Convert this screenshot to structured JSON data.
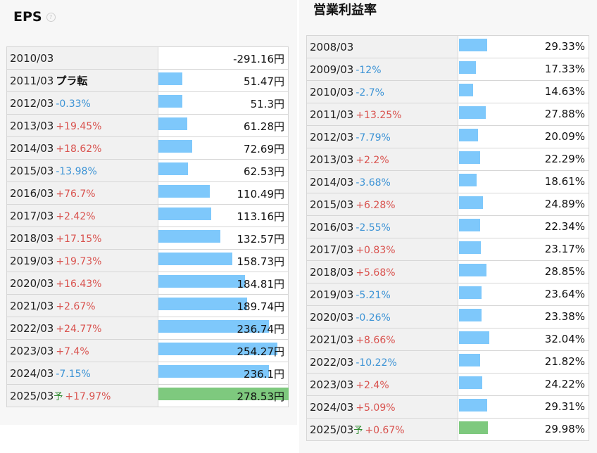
{
  "eps": {
    "title": "EPS",
    "help_icon": "question-circle-icon",
    "max_value": 278.53,
    "bar_width_max": 185,
    "rows": [
      {
        "year": "2010/03",
        "change": "",
        "change_type": "none",
        "value": -291.16,
        "display": "-291.16円",
        "forecast": false
      },
      {
        "year": "2011/03",
        "change": "プラ転",
        "change_type": "flip",
        "value": 51.47,
        "display": "51.47円",
        "forecast": false
      },
      {
        "year": "2012/03",
        "change": "-0.33%",
        "change_type": "neg",
        "value": 51.3,
        "display": "51.3円",
        "forecast": false
      },
      {
        "year": "2013/03",
        "change": "+19.45%",
        "change_type": "pos",
        "value": 61.28,
        "display": "61.28円",
        "forecast": false
      },
      {
        "year": "2014/03",
        "change": "+18.62%",
        "change_type": "pos",
        "value": 72.69,
        "display": "72.69円",
        "forecast": false
      },
      {
        "year": "2015/03",
        "change": "-13.98%",
        "change_type": "neg",
        "value": 62.53,
        "display": "62.53円",
        "forecast": false
      },
      {
        "year": "2016/03",
        "change": "+76.7%",
        "change_type": "pos",
        "value": 110.49,
        "display": "110.49円",
        "forecast": false
      },
      {
        "year": "2017/03",
        "change": "+2.42%",
        "change_type": "pos",
        "value": 113.16,
        "display": "113.16円",
        "forecast": false
      },
      {
        "year": "2018/03",
        "change": "+17.15%",
        "change_type": "pos",
        "value": 132.57,
        "display": "132.57円",
        "forecast": false
      },
      {
        "year": "2019/03",
        "change": "+19.73%",
        "change_type": "pos",
        "value": 158.73,
        "display": "158.73円",
        "forecast": false
      },
      {
        "year": "2020/03",
        "change": "+16.43%",
        "change_type": "pos",
        "value": 184.81,
        "display": "184.81円",
        "forecast": false
      },
      {
        "year": "2021/03",
        "change": "+2.67%",
        "change_type": "pos",
        "value": 189.74,
        "display": "189.74円",
        "forecast": false
      },
      {
        "year": "2022/03",
        "change": "+24.77%",
        "change_type": "pos",
        "value": 236.74,
        "display": "236.74円",
        "forecast": false
      },
      {
        "year": "2023/03",
        "change": "+7.4%",
        "change_type": "pos",
        "value": 254.27,
        "display": "254.27円",
        "forecast": false
      },
      {
        "year": "2024/03",
        "change": "-7.15%",
        "change_type": "neg",
        "value": 236.1,
        "display": "236.1円",
        "forecast": false
      },
      {
        "year": "2025/03",
        "change": "+17.97%",
        "change_type": "pos",
        "value": 278.53,
        "display": "278.53円",
        "forecast": true
      }
    ]
  },
  "operating_margin": {
    "title": "営業利益率",
    "max_value": 137,
    "bar_width_max": 186,
    "rows": [
      {
        "year": "2008/03",
        "change": "",
        "change_type": "none",
        "value": 29.33,
        "display": "29.33%",
        "forecast": false
      },
      {
        "year": "2009/03",
        "change": "-12%",
        "change_type": "neg",
        "value": 17.33,
        "display": "17.33%",
        "forecast": false
      },
      {
        "year": "2010/03",
        "change": "-2.7%",
        "change_type": "neg",
        "value": 14.63,
        "display": "14.63%",
        "forecast": false
      },
      {
        "year": "2011/03",
        "change": "+13.25%",
        "change_type": "pos",
        "value": 27.88,
        "display": "27.88%",
        "forecast": false
      },
      {
        "year": "2012/03",
        "change": "-7.79%",
        "change_type": "neg",
        "value": 20.09,
        "display": "20.09%",
        "forecast": false
      },
      {
        "year": "2013/03",
        "change": "+2.2%",
        "change_type": "pos",
        "value": 22.29,
        "display": "22.29%",
        "forecast": false
      },
      {
        "year": "2014/03",
        "change": "-3.68%",
        "change_type": "neg",
        "value": 18.61,
        "display": "18.61%",
        "forecast": false
      },
      {
        "year": "2015/03",
        "change": "+6.28%",
        "change_type": "pos",
        "value": 24.89,
        "display": "24.89%",
        "forecast": false
      },
      {
        "year": "2016/03",
        "change": "-2.55%",
        "change_type": "neg",
        "value": 22.34,
        "display": "22.34%",
        "forecast": false
      },
      {
        "year": "2017/03",
        "change": "+0.83%",
        "change_type": "pos",
        "value": 23.17,
        "display": "23.17%",
        "forecast": false
      },
      {
        "year": "2018/03",
        "change": "+5.68%",
        "change_type": "pos",
        "value": 28.85,
        "display": "28.85%",
        "forecast": false
      },
      {
        "year": "2019/03",
        "change": "-5.21%",
        "change_type": "neg",
        "value": 23.64,
        "display": "23.64%",
        "forecast": false
      },
      {
        "year": "2020/03",
        "change": "-0.26%",
        "change_type": "neg",
        "value": 23.38,
        "display": "23.38%",
        "forecast": false
      },
      {
        "year": "2021/03",
        "change": "+8.66%",
        "change_type": "pos",
        "value": 32.04,
        "display": "32.04%",
        "forecast": false
      },
      {
        "year": "2022/03",
        "change": "-10.22%",
        "change_type": "neg",
        "value": 21.82,
        "display": "21.82%",
        "forecast": false
      },
      {
        "year": "2023/03",
        "change": "+2.4%",
        "change_type": "pos",
        "value": 24.22,
        "display": "24.22%",
        "forecast": false
      },
      {
        "year": "2024/03",
        "change": "+5.09%",
        "change_type": "pos",
        "value": 29.31,
        "display": "29.31%",
        "forecast": false
      },
      {
        "year": "2025/03",
        "change": "+0.67%",
        "change_type": "pos",
        "value": 29.98,
        "display": "29.98%",
        "forecast": true
      }
    ]
  },
  "forecast_mark": "予",
  "colors": {
    "bar": "#7ec8fb",
    "forecast_bar": "#7ec97e",
    "positive": "#d9534f",
    "negative": "#3c93d5"
  }
}
